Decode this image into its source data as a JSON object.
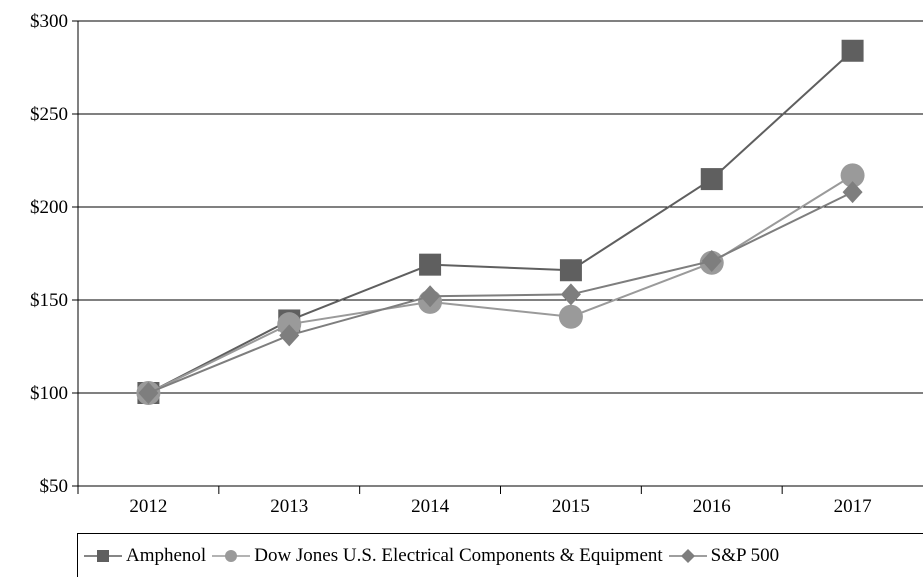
{
  "chart_data": {
    "type": "line",
    "categories": [
      "2012",
      "2013",
      "2014",
      "2015",
      "2016",
      "2017"
    ],
    "y_ticks": [
      "$50",
      "$100",
      "$150",
      "$200",
      "$250",
      "$300"
    ],
    "y_tick_values": [
      50,
      100,
      150,
      200,
      250,
      300
    ],
    "ylim": [
      50,
      300
    ],
    "grid": "horizontal",
    "legend_position": "bottom",
    "series": [
      {
        "name": "Amphenol",
        "marker": "square",
        "color": "#5f5f5f",
        "values": [
          100,
          139,
          169,
          166,
          215,
          284
        ]
      },
      {
        "name": "Dow Jones U.S. Electrical Components & Equipment",
        "marker": "circle",
        "color": "#9a9a9a",
        "values": [
          100,
          137,
          149,
          141,
          170,
          217
        ]
      },
      {
        "name": "S&P 500",
        "marker": "diamond",
        "color": "#7e7e7e",
        "values": [
          100,
          131,
          152,
          153,
          171,
          208
        ]
      }
    ]
  }
}
